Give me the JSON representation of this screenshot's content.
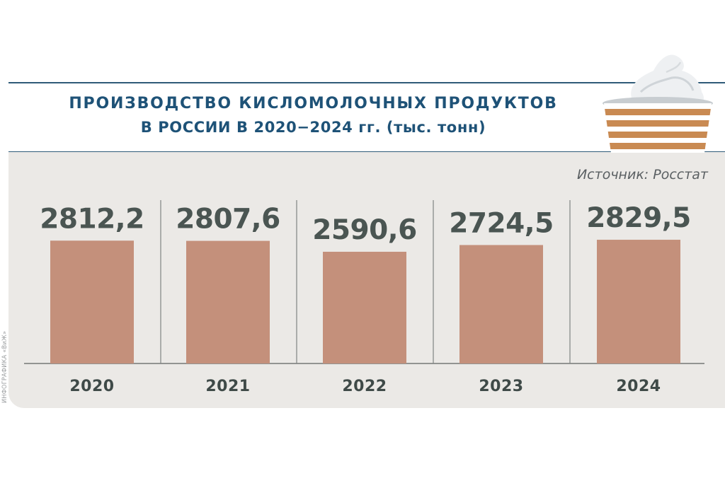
{
  "title": {
    "line1": "ПРОИЗВОДСТВО КИСЛОМОЛОЧНЫХ ПРОДУКТОВ",
    "line2": "В РОССИИ В 2020−2024 гг. (тыс. тонн)"
  },
  "source": "Источник: Росстат",
  "credit": "ИНФОГРАФИКА «ВиЖ»",
  "colors": {
    "bar": "#c4907b",
    "value_text": "#4a5552",
    "year_text": "#3f4a48",
    "title": "#1e5277",
    "panel": "#ebe9e6"
  },
  "illustration": "sour-cream-cup-icon",
  "chart_data": {
    "type": "bar",
    "categories": [
      "2020",
      "2021",
      "2022",
      "2023",
      "2024"
    ],
    "values": [
      2812.2,
      2807.6,
      2590.6,
      2724.5,
      2829.5
    ],
    "value_labels": [
      "2812,2",
      "2807,6",
      "2590,6",
      "2724,5",
      "2829,5"
    ],
    "title": "ПРОИЗВОДСТВО КИСЛОМОЛОЧНЫХ ПРОДУКТОВ В РОССИИ В 2020−2024 гг. (тыс. тонн)",
    "xlabel": "",
    "ylabel": "",
    "grid": false,
    "legend": "none"
  }
}
